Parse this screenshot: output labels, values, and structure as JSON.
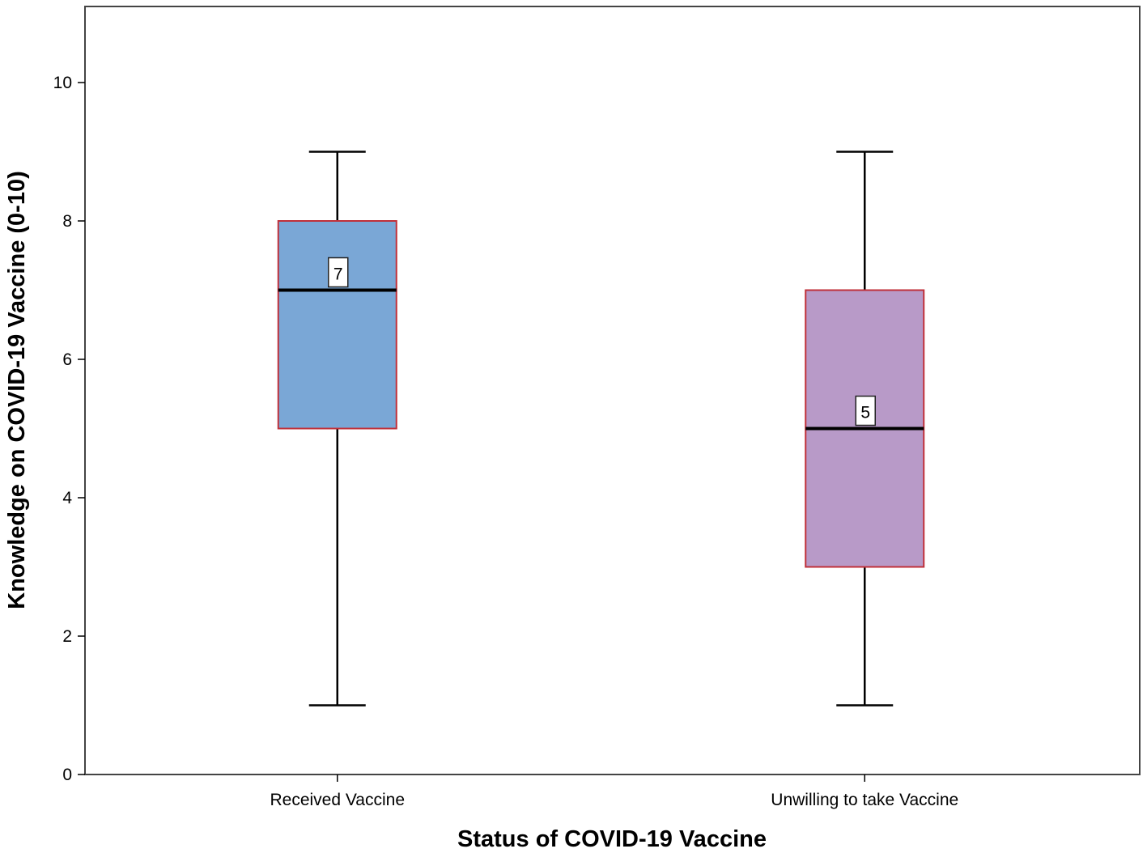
{
  "chart_data": {
    "type": "boxplot",
    "xlabel": "Status of COVID-19 Vaccine",
    "ylabel": "Knowledge on COVID-19 Vaccine (0-10)",
    "ylim": [
      0,
      11.1
    ],
    "yticks": [
      0,
      2,
      4,
      6,
      8,
      10
    ],
    "grid": false,
    "categories": [
      "Received Vaccine",
      "Unwilling to take Vaccine"
    ],
    "boxes": [
      {
        "category": "Received Vaccine",
        "min": 1,
        "q1": 5,
        "median": 7,
        "q3": 8,
        "max": 9,
        "median_label": "7",
        "color": "#7aa7d6"
      },
      {
        "category": "Unwilling to take Vaccine",
        "min": 1,
        "q1": 3,
        "median": 5,
        "q3": 7,
        "max": 9,
        "median_label": "5",
        "color": "#b89ac8"
      }
    ],
    "box_outline_color": "#c0303a"
  }
}
